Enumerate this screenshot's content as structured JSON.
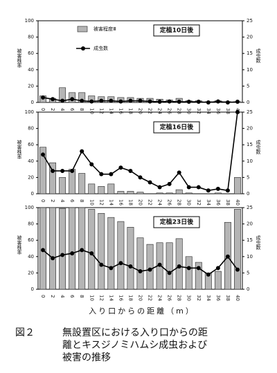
{
  "chart_data": [
    {
      "type": "bar-line",
      "title": "定植10日後",
      "y_label": "被害株率",
      "y2_label": "成虫数",
      "categories": [
        "0",
        "2",
        "4",
        "6",
        "8",
        "10",
        "12",
        "14",
        "16",
        "18",
        "20",
        "22",
        "24",
        "26",
        "28",
        "30",
        "32",
        "34",
        "36",
        "38",
        "40"
      ],
      "series": [
        {
          "name": "被害程度Ⅲ",
          "type": "bar",
          "color": "#b5b5b5",
          "values": [
            8,
            5,
            18,
            12,
            12,
            8,
            7,
            7,
            6,
            6,
            5,
            5,
            4,
            3,
            5,
            2,
            2,
            1,
            2,
            1,
            1
          ]
        },
        {
          "name": "成虫数",
          "type": "line",
          "axis": "y2",
          "color": "#000000",
          "values": [
            1.5,
            1,
            0.5,
            1,
            0.5,
            0.3,
            0.5,
            0.5,
            0.3,
            0.5,
            0.5,
            0.3,
            0.2,
            0.3,
            0.2,
            0.2,
            0.2,
            0,
            0.3,
            0,
            0.2
          ]
        }
      ],
      "ylim": [
        0,
        100
      ],
      "yticks": [
        0,
        20,
        40,
        60,
        80,
        100
      ],
      "y2lim": [
        0,
        25
      ],
      "y2ticks": [
        0,
        5,
        10,
        15,
        20,
        25
      ]
    },
    {
      "type": "bar-line",
      "title": "定植16日後",
      "y_label": "被害株率",
      "y2_label": "成虫数",
      "categories": [
        "0",
        "2",
        "4",
        "6",
        "8",
        "10",
        "12",
        "14",
        "16",
        "18",
        "20",
        "22",
        "24",
        "26",
        "28",
        "30",
        "32",
        "34",
        "36",
        "38",
        "40"
      ],
      "series": [
        {
          "type": "bar",
          "color": "#b5b5b5",
          "values": [
            57,
            38,
            20,
            30,
            25,
            12,
            9,
            12,
            3,
            3,
            2,
            0,
            1,
            1,
            5,
            1,
            0,
            0,
            1,
            0,
            20
          ]
        },
        {
          "type": "line",
          "axis": "y2",
          "color": "#000000",
          "values": [
            12,
            7,
            7,
            7,
            13,
            9,
            6,
            6,
            8,
            7,
            5,
            3.5,
            2,
            3,
            6.5,
            2,
            2,
            1,
            1.5,
            1,
            25
          ]
        }
      ],
      "ylim": [
        0,
        100
      ],
      "yticks": [
        0,
        20,
        40,
        60,
        80,
        100
      ],
      "y2lim": [
        0,
        25
      ],
      "y2ticks": [
        0,
        5,
        10,
        15,
        20,
        25
      ]
    },
    {
      "type": "bar-line",
      "title": "定植23日後",
      "y_label": "被害株率",
      "y2_label": "成虫数",
      "categories": [
        "0",
        "2",
        "4",
        "6",
        "8",
        "10",
        "12",
        "14",
        "16",
        "18",
        "20",
        "22",
        "24",
        "26",
        "28",
        "30",
        "32",
        "34",
        "36",
        "38",
        "40"
      ],
      "series": [
        {
          "type": "bar",
          "color": "#b5b5b5",
          "values": [
            100,
            100,
            99,
            100,
            100,
            98,
            93,
            88,
            83,
            76,
            63,
            55,
            57,
            57,
            62,
            40,
            33,
            20,
            22,
            82,
            98
          ]
        },
        {
          "type": "line",
          "axis": "y2",
          "color": "#000000",
          "values": [
            12,
            9.5,
            10.5,
            11,
            12,
            11,
            7.5,
            6.5,
            8,
            7,
            5.5,
            6,
            7.5,
            5,
            7,
            6.5,
            6.5,
            4.5,
            6.5,
            10,
            6
          ]
        }
      ],
      "ylim": [
        0,
        100
      ],
      "yticks": [
        0,
        20,
        40,
        60,
        80,
        100
      ],
      "y2lim": [
        0,
        25
      ],
      "y2ticks": [
        0,
        5,
        10,
        15,
        20,
        25
      ]
    }
  ],
  "x_label": "入り口からの距離（m）",
  "caption": [
    "図２",
    "無設置区における入り口からの距",
    "離とキスジノミハムシ成虫および",
    "被害の推移"
  ]
}
